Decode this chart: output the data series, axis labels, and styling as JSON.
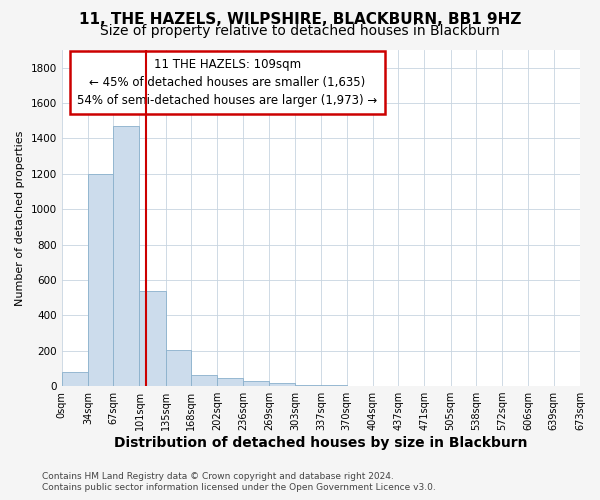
{
  "title1": "11, THE HAZELS, WILPSHIRE, BLACKBURN, BB1 9HZ",
  "title2": "Size of property relative to detached houses in Blackburn",
  "xlabel": "Distribution of detached houses by size in Blackburn",
  "ylabel": "Number of detached properties",
  "footnote1": "Contains HM Land Registry data © Crown copyright and database right 2024.",
  "footnote2": "Contains public sector information licensed under the Open Government Licence v3.0.",
  "annotation_line1": "11 THE HAZELS: 109sqm",
  "annotation_line2": "← 45% of detached houses are smaller (1,635)",
  "annotation_line3": "54% of semi-detached houses are larger (1,973) →",
  "bar_color": "#ccdcec",
  "bar_edge_color": "#8ab0cc",
  "reference_line_color": "#cc0000",
  "reference_line_x": 109,
  "bin_edges": [
    0,
    34,
    67,
    101,
    135,
    168,
    202,
    236,
    269,
    303,
    337,
    370,
    404,
    437,
    471,
    505,
    538,
    572,
    606,
    639,
    673
  ],
  "bar_heights": [
    80,
    1200,
    1470,
    535,
    205,
    65,
    47,
    27,
    20,
    5,
    5,
    3,
    2,
    1,
    0,
    0,
    0,
    0,
    0,
    0
  ],
  "ylim": [
    0,
    1900
  ],
  "yticks": [
    0,
    200,
    400,
    600,
    800,
    1000,
    1200,
    1400,
    1600,
    1800
  ],
  "background_color": "#f5f5f5",
  "plot_bg_color": "#ffffff",
  "grid_color": "#c8d4e0",
  "annotation_box_color": "#ffffff",
  "annotation_box_edge": "#cc0000",
  "title1_fontsize": 11,
  "title2_fontsize": 10,
  "ylabel_fontsize": 8,
  "xlabel_fontsize": 10,
  "footnote_fontsize": 6.5,
  "tick_fontsize": 7.5,
  "annot_fontsize": 8.5
}
